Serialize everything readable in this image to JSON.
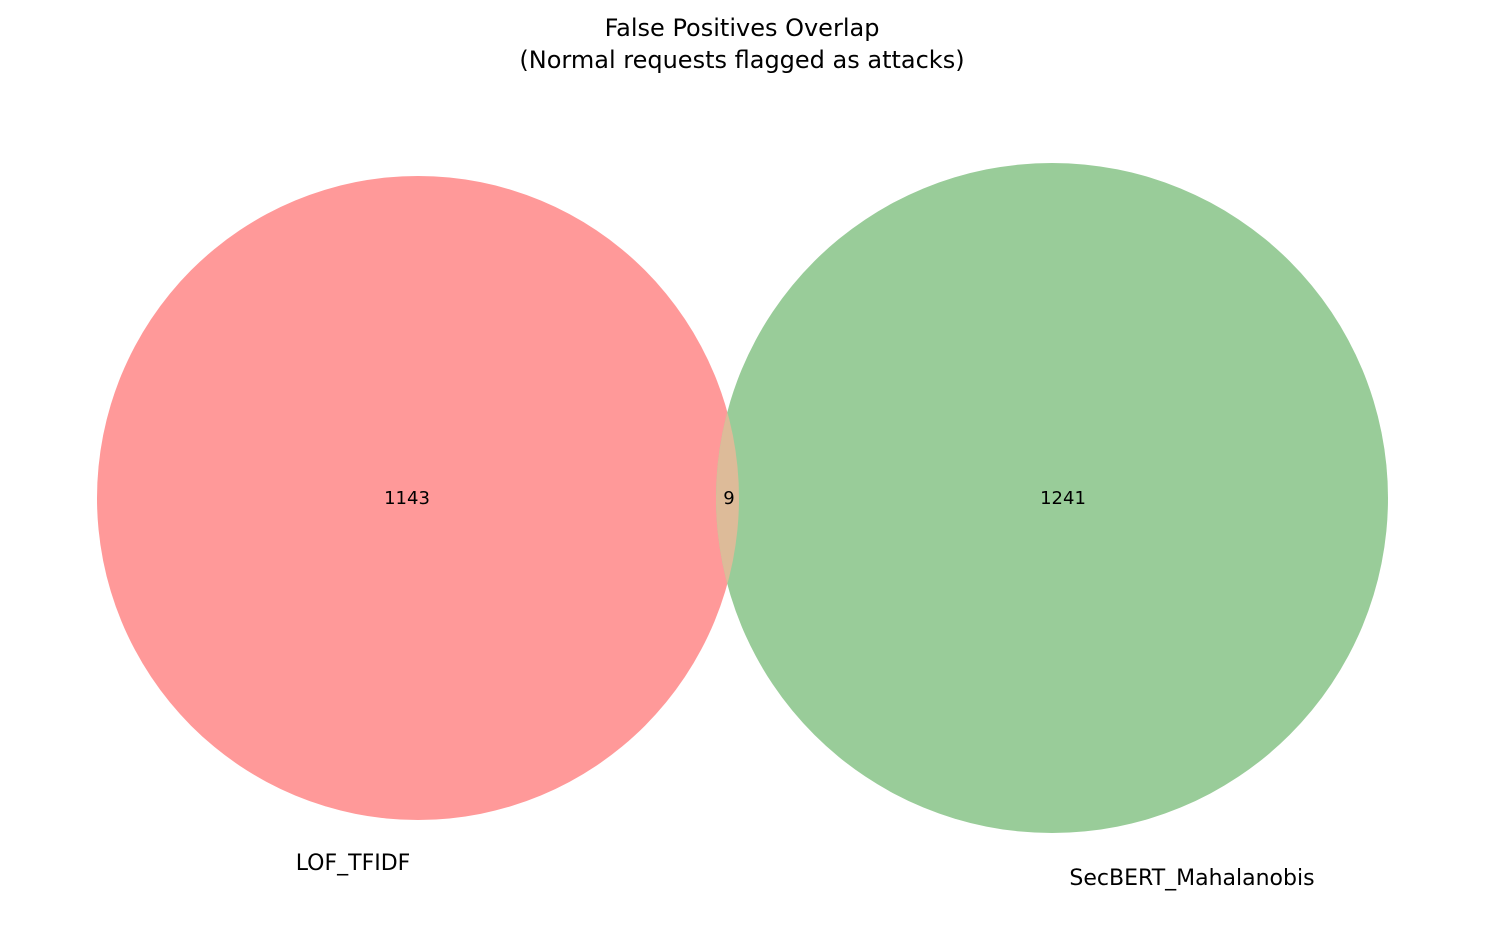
{
  "title": {
    "line1": "False Positives Overlap",
    "line2": "(Normal requests flagged as attacks)"
  },
  "sets": [
    {
      "name": "LOF_TFIDF",
      "only_count": "1143",
      "color": "#ff9999"
    },
    {
      "name": "SecBERT_Mahalanobis",
      "only_count": "1241",
      "color": "#99cc99"
    }
  ],
  "overlap": {
    "count": "9",
    "color": "#ddbb99"
  }
}
